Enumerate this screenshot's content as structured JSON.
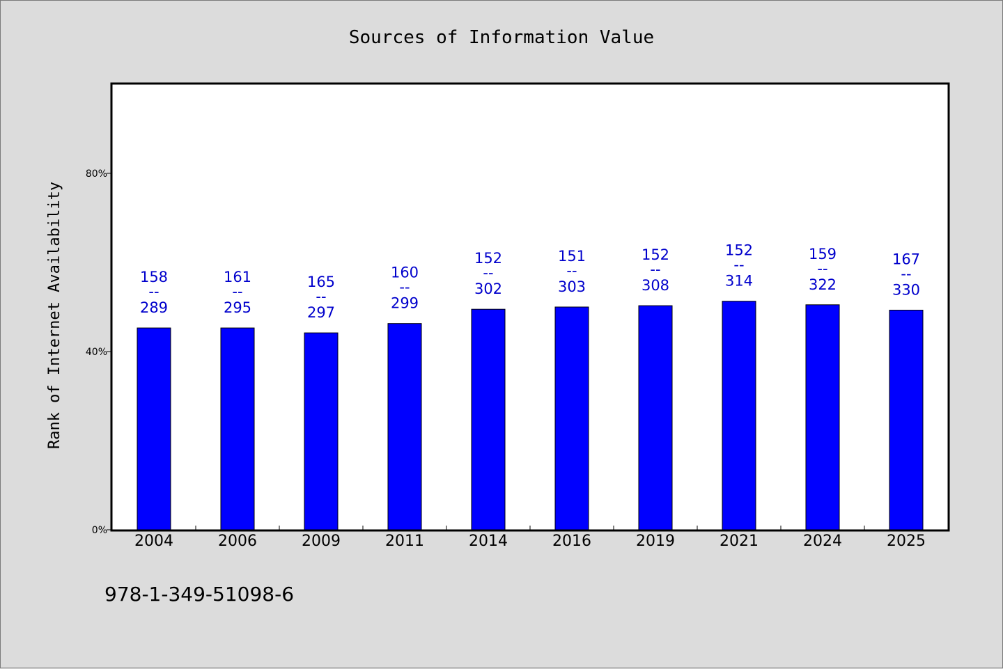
{
  "chart_data": {
    "type": "bar",
    "title": "Sources of Information Value",
    "xlabel": "",
    "ylabel": "Rank of Internet Availability",
    "ylim": [
      0,
      100
    ],
    "y_ticks": [
      0,
      40,
      80
    ],
    "y_tick_labels": [
      "0%",
      "40%",
      "80%"
    ],
    "categories": [
      "2004",
      "2006",
      "2009",
      "2011",
      "2014",
      "2016",
      "2019",
      "2021",
      "2024",
      "2025"
    ],
    "values": [
      45.3,
      45.3,
      44.2,
      46.3,
      49.5,
      50.0,
      50.3,
      51.3,
      50.5,
      49.3
    ],
    "bar_labels": [
      {
        "top": "158",
        "sep": "--",
        "bottom": "289"
      },
      {
        "top": "161",
        "sep": "--",
        "bottom": "295"
      },
      {
        "top": "165",
        "sep": "--",
        "bottom": "297"
      },
      {
        "top": "160",
        "sep": "--",
        "bottom": "299"
      },
      {
        "top": "152",
        "sep": "--",
        "bottom": "302"
      },
      {
        "top": "151",
        "sep": "--",
        "bottom": "303"
      },
      {
        "top": "152",
        "sep": "--",
        "bottom": "308"
      },
      {
        "top": "152",
        "sep": "--",
        "bottom": "314"
      },
      {
        "top": "159",
        "sep": "--",
        "bottom": "322"
      },
      {
        "top": "167",
        "sep": "--",
        "bottom": "330"
      }
    ],
    "bar_color": "#0000ff",
    "label_color": "#0000cc",
    "plot_background": "#ffffff",
    "page_background": "#dcdcdc",
    "grid": false,
    "legend": "none"
  },
  "footer": {
    "text": "978-1-349-51098-6"
  }
}
